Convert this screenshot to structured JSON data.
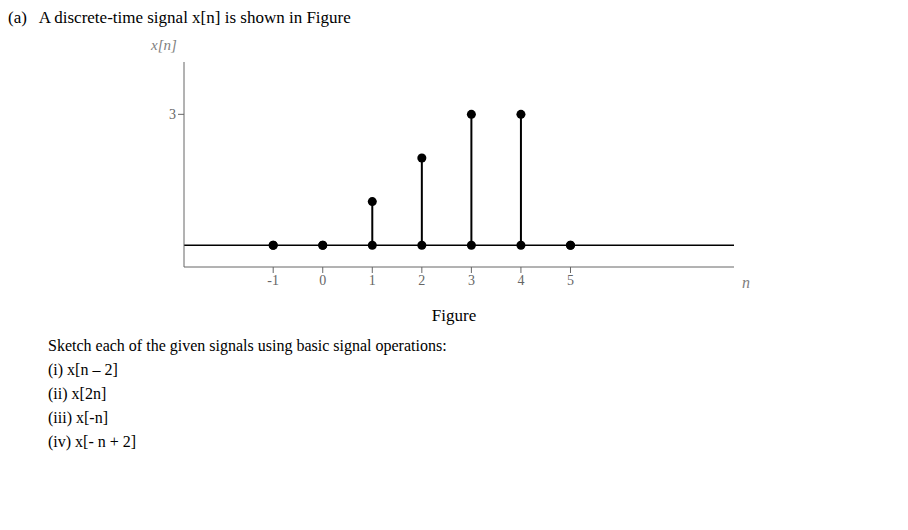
{
  "chart_data": {
    "type": "stem",
    "title": "(a)   A discrete-time signal x[n] is shown in Figure",
    "x": [
      -1,
      0,
      1,
      2,
      3,
      4,
      5
    ],
    "values": [
      0,
      0,
      1,
      2,
      3,
      3,
      0
    ],
    "xlim": [
      -2.8,
      8.3
    ],
    "ylim": [
      -0.5,
      4.2
    ],
    "xticks": [
      -1,
      0,
      1,
      2,
      3,
      4,
      5
    ],
    "yticks": [
      3
    ],
    "xlabel": "n",
    "ylabel": "x[n]",
    "annotations": [
      "Figure",
      "Sketch each of the given signals using basic signal operations:",
      "(i) x[n – 2]",
      "(ii) x[2n]",
      "(iii) x[-n]",
      "(iv) x[- n + 2]"
    ],
    "color": "#000000",
    "marker": "circle",
    "grid": false
  }
}
